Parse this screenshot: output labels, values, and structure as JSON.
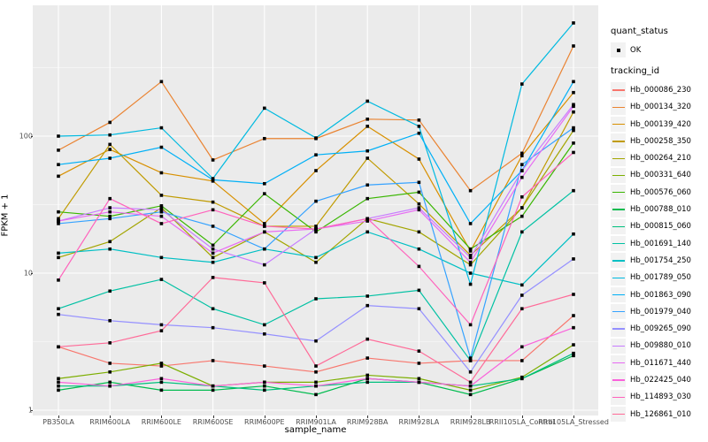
{
  "figure": {
    "background": "#FFFFFF",
    "panel_bg": "#EBEBEB",
    "grid_major_color": "#FFFFFF",
    "grid_minor_color": "#F7F7F7",
    "tick_label_color": "#4D4D4D",
    "point_color": "#000000"
  },
  "legend": {
    "quant_title": "quant_status",
    "quant_item_label": "OK",
    "tracking_title": "tracking_id"
  },
  "chart_data": {
    "type": "line",
    "title": "",
    "xlabel": "sample_name",
    "ylabel": "FPKM + 1",
    "yscale": "log10",
    "ylim": [
      1,
      900
    ],
    "y_ticks": [
      1,
      10,
      100
    ],
    "grid": true,
    "legend_position": "right",
    "point_marker": "black square (quant_status = OK)",
    "categories": [
      "PB350LA",
      "RRIM600LA",
      "RRIM600LE",
      "RRIM600SE",
      "RRIM600PE",
      "RRIM901LA",
      "RRIM928BA",
      "RRIM928LA",
      "RRIM928LB",
      "RRII105LA_Control",
      "RRII105LA_Stressed"
    ],
    "series": [
      {
        "name": "Hb_000086_230",
        "color": "#F8766D",
        "values": [
          2.9,
          2.2,
          2.1,
          2.3,
          2.1,
          1.9,
          2.4,
          2.2,
          2.3,
          2.3,
          4.9
        ]
      },
      {
        "name": "Hb_000134_320",
        "color": "#EA8331",
        "values": [
          79,
          126,
          250,
          67,
          96,
          96,
          133,
          131,
          40,
          75,
          455
        ]
      },
      {
        "name": "Hb_000139_420",
        "color": "#D89000",
        "values": [
          51,
          80,
          54,
          47,
          23,
          56,
          118,
          68,
          14.5,
          72,
          208
        ]
      },
      {
        "name": "Hb_000258_350",
        "color": "#C09B00",
        "values": [
          25,
          87,
          37,
          33,
          22,
          22,
          69,
          32,
          13.5,
          30,
          150
        ]
      },
      {
        "name": "Hb_000264_210",
        "color": "#A3A500",
        "values": [
          13,
          17,
          30,
          13,
          20,
          12,
          25,
          20,
          11.5,
          30,
          110
        ]
      },
      {
        "name": "Hb_000331_640",
        "color": "#7CAE00",
        "values": [
          1.7,
          1.9,
          2.2,
          1.5,
          1.6,
          1.6,
          1.8,
          1.7,
          1.4,
          1.74,
          3.0
        ]
      },
      {
        "name": "Hb_000576_060",
        "color": "#39B600",
        "values": [
          28,
          26,
          31,
          16,
          38,
          20,
          35,
          39,
          15,
          26,
          89
        ]
      },
      {
        "name": "Hb_000788_010",
        "color": "#00BB4E",
        "values": [
          1.4,
          1.6,
          1.4,
          1.4,
          1.5,
          1.3,
          1.7,
          1.6,
          1.3,
          1.7,
          2.5
        ]
      },
      {
        "name": "Hb_000815_060",
        "color": "#00BF7D",
        "values": [
          1.5,
          1.5,
          1.6,
          1.5,
          1.4,
          1.5,
          1.6,
          1.6,
          1.5,
          1.7,
          2.6
        ]
      },
      {
        "name": "Hb_001691_140",
        "color": "#00C1A3",
        "values": [
          5.5,
          7.4,
          9,
          5.5,
          4.2,
          6.5,
          6.8,
          7.5,
          2.3,
          20,
          40
        ]
      },
      {
        "name": "Hb_001754_250",
        "color": "#00BFC4",
        "values": [
          14,
          15,
          13,
          12,
          15,
          13,
          20,
          15,
          10,
          8.2,
          19.3
        ]
      },
      {
        "name": "Hb_001789_050",
        "color": "#00BAE0",
        "values": [
          100,
          102,
          115,
          49,
          160,
          97,
          180,
          118,
          8.3,
          240,
          670
        ]
      },
      {
        "name": "Hb_001863_090",
        "color": "#00B0F6",
        "values": [
          62,
          69,
          83,
          48,
          45,
          73,
          78,
          105,
          23,
          56,
          250
        ]
      },
      {
        "name": "Hb_001979_040",
        "color": "#35A2FF",
        "values": [
          23,
          25,
          28,
          22,
          15,
          33.5,
          44,
          46,
          2.4,
          62,
          115
        ]
      },
      {
        "name": "Hb_009265_090",
        "color": "#9590FF",
        "values": [
          5.0,
          4.5,
          4.2,
          4.0,
          3.6,
          3.2,
          5.8,
          5.5,
          1.9,
          6.9,
          12.7
        ]
      },
      {
        "name": "Hb_009880_010",
        "color": "#C77CFF",
        "values": [
          24,
          30,
          29,
          15,
          11.5,
          21,
          25,
          30,
          13,
          56,
          170
        ]
      },
      {
        "name": "Hb_011671_440",
        "color": "#E76BF3",
        "values": [
          24,
          28,
          26,
          14,
          20,
          21,
          24,
          29,
          12,
          50,
          165
        ]
      },
      {
        "name": "Hb_022425_040",
        "color": "#FA62DB",
        "values": [
          1.6,
          1.5,
          1.7,
          1.5,
          1.6,
          1.5,
          1.7,
          1.6,
          1.5,
          2.9,
          4.0
        ]
      },
      {
        "name": "Hb_114893_030",
        "color": "#FF62BC",
        "values": [
          8.9,
          35,
          23,
          29,
          22,
          21,
          25,
          11.2,
          4.2,
          36,
          76
        ]
      },
      {
        "name": "Hb_126861_010",
        "color": "#FF6A98",
        "values": [
          2.9,
          3.1,
          3.8,
          9.3,
          8.5,
          2.1,
          3.3,
          2.7,
          1.6,
          5.5,
          7.0
        ]
      }
    ]
  }
}
